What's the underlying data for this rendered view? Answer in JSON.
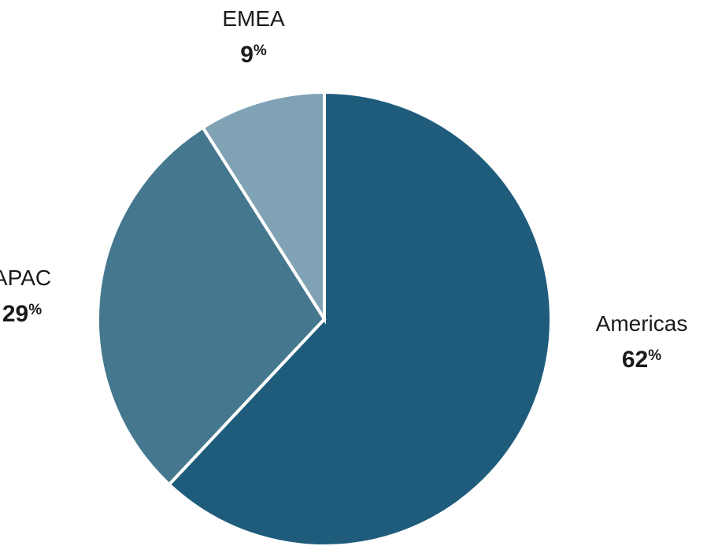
{
  "chart_data": {
    "type": "pie",
    "categories": [
      "Americas",
      "APAC",
      "EMEA"
    ],
    "values": [
      62,
      29,
      9
    ],
    "unit": "%",
    "colors": [
      "#1f5c7c",
      "#45788f",
      "#7fa3b5"
    ],
    "start_angle_deg": 0,
    "direction": "clockwise",
    "legend": "none"
  }
}
